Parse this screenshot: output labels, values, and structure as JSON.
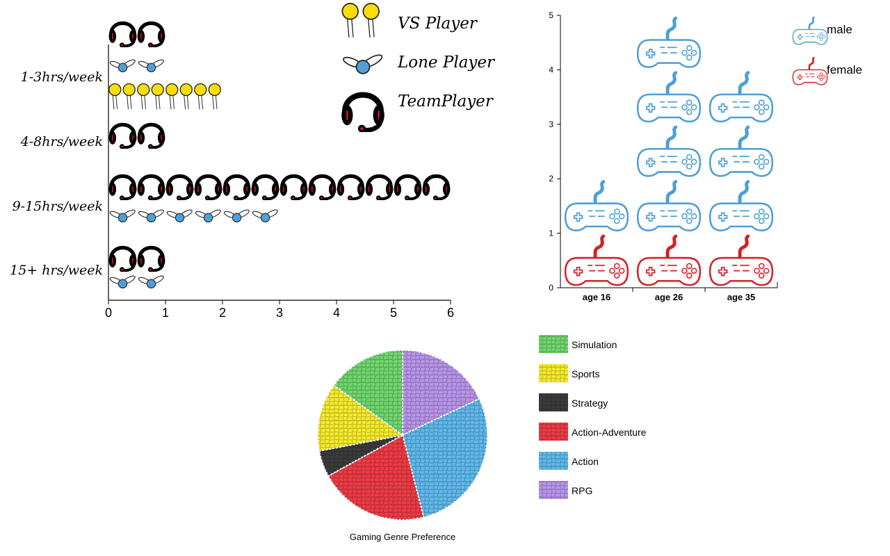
{
  "chart_data": [
    {
      "type": "pictograph-bar",
      "categories": [
        "1-3hrs/week",
        "4-8hrs/week",
        "9-15hrs/week",
        "15+ hrs/week"
      ],
      "series": [
        {
          "name": "VS Player",
          "values": [
            2,
            0,
            0,
            0
          ]
        },
        {
          "name": "Lone Player",
          "values": [
            1,
            0,
            3,
            1
          ]
        },
        {
          "name": "TeamPlayer",
          "values": [
            1,
            1,
            6,
            1
          ]
        }
      ],
      "xlim": [
        0,
        6
      ],
      "xticks": [
        "0",
        "1",
        "2",
        "3",
        "4",
        "5",
        "6"
      ],
      "legend_position": "top",
      "colors": {
        "vs": "#f9dc0a",
        "lone": "#4f9fd8",
        "team": "#000000",
        "accent": "#e0151b"
      },
      "icons": {
        "VS Player": "lollipop-icon",
        "Lone Player": "winged-bulb-icon",
        "TeamPlayer": "headset-icon"
      }
    },
    {
      "type": "pictograph-stacked-column",
      "categories": [
        "age 16",
        "age 26",
        "age 35"
      ],
      "series": [
        {
          "name": "female",
          "values": [
            1,
            1,
            1
          ],
          "color": "#d62027"
        },
        {
          "name": "male",
          "values": [
            1,
            4,
            3
          ],
          "color": "#4d9fd6"
        }
      ],
      "ylim": [
        0,
        5
      ],
      "yticks": [
        "0",
        "1",
        "2",
        "3",
        "4",
        "5"
      ],
      "legend_position": "top-right",
      "icons": {
        "all": "gamepad-icon"
      }
    },
    {
      "type": "pie",
      "title": "Gaming Genre Preference",
      "labels": [
        "Simulation",
        "Sports",
        "Strategy",
        "Action-Adventure",
        "Action",
        "RPG"
      ],
      "values": [
        15,
        13,
        5,
        21,
        28,
        18
      ],
      "colors": [
        "#6ed66e",
        "#f4ea2c",
        "#3b3b3b",
        "#ed3b45",
        "#5fb8ea",
        "#b794ea"
      ],
      "legend_position": "right"
    }
  ]
}
